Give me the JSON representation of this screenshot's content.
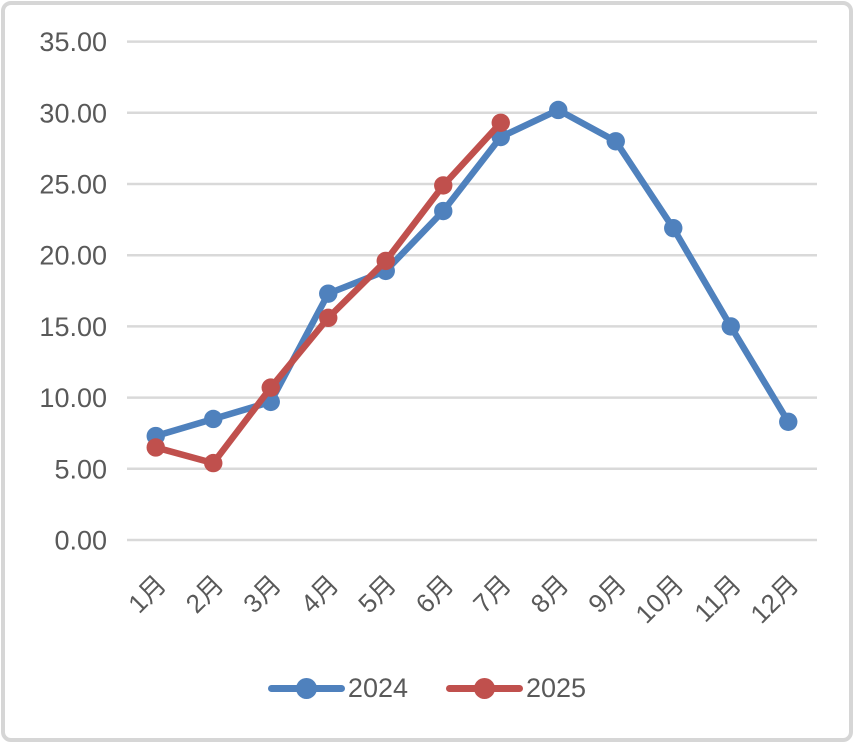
{
  "window": {
    "background_color": "#ffffff",
    "border_color": "#d6d6d6"
  },
  "chart_data": {
    "type": "line",
    "title": "",
    "xlabel": "",
    "ylabel": "",
    "categories": [
      "1月",
      "2月",
      "3月",
      "4月",
      "5月",
      "6月",
      "7月",
      "8月",
      "9月",
      "10月",
      "11月",
      "12月"
    ],
    "series": [
      {
        "name": "2024",
        "color": "#4F81BD",
        "values": [
          7.3,
          8.5,
          9.7,
          17.3,
          18.9,
          23.1,
          28.3,
          30.2,
          28.0,
          21.9,
          15.0,
          8.3
        ]
      },
      {
        "name": "2025",
        "color": "#C0504D",
        "values": [
          6.5,
          5.4,
          10.7,
          15.6,
          19.6,
          24.9,
          29.3
        ]
      }
    ],
    "ylim": [
      0,
      35
    ],
    "ytick_step": 5,
    "ytick_labels": [
      "0.00",
      "5.00",
      "10.00",
      "15.00",
      "20.00",
      "25.00",
      "30.00",
      "35.00"
    ],
    "grid": "horizontal",
    "gridline_color": "#D9D9D9",
    "axis_label_color": "#595959",
    "x_label_rotation_deg": 45,
    "marker": "circle",
    "legend_position": "bottom"
  }
}
